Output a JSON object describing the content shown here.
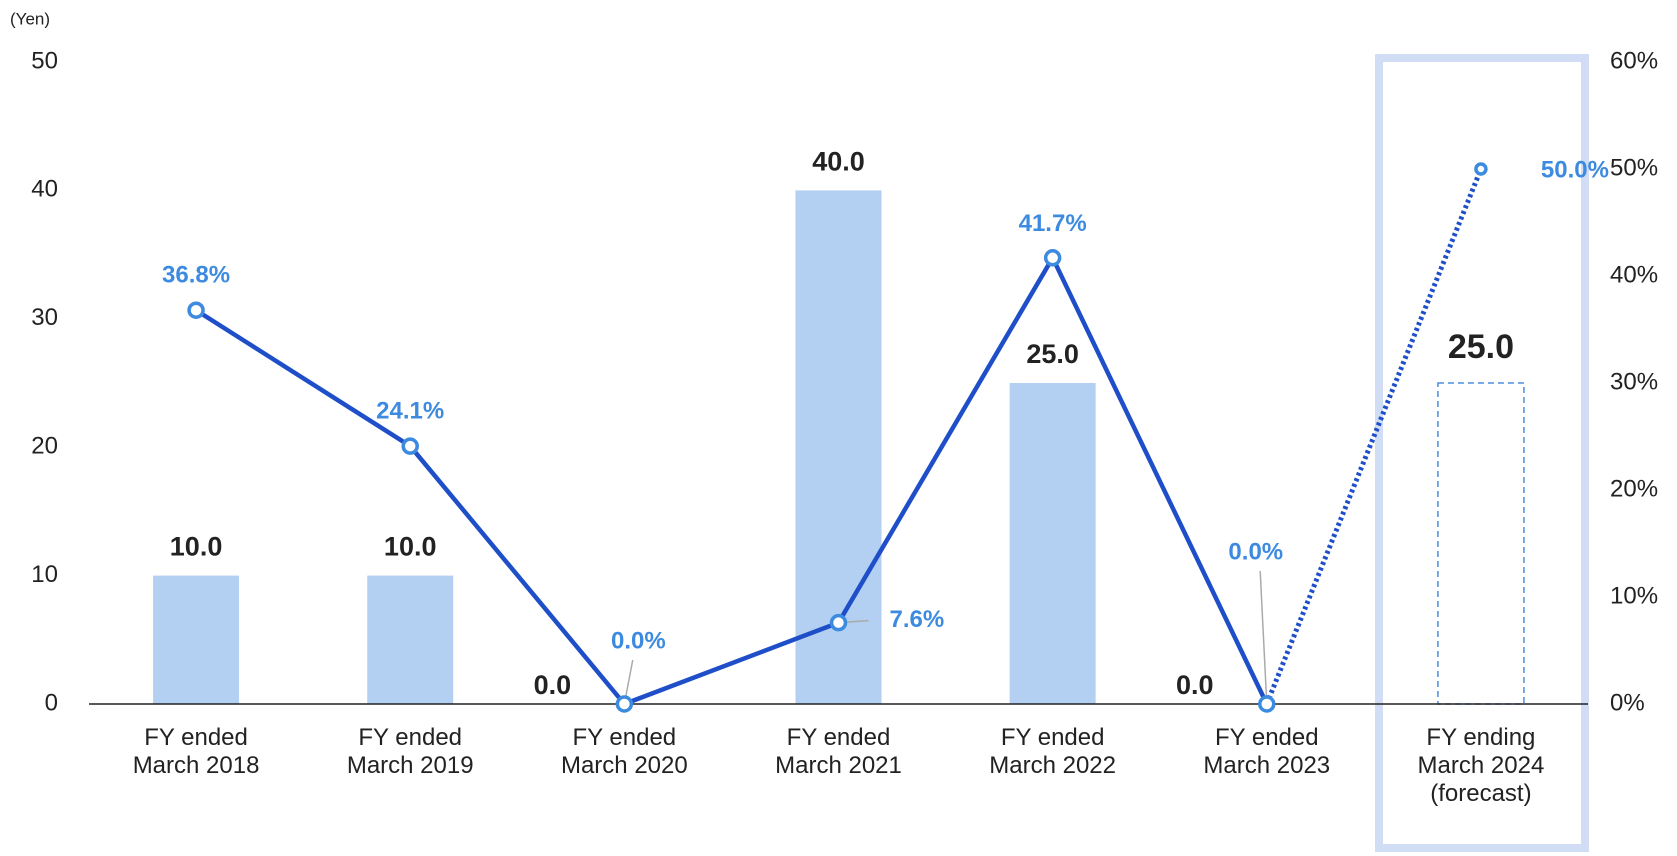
{
  "chart_data": {
    "type": "bar+line",
    "y_axis_label": "(Yen)",
    "categories": [
      "FY ended\nMarch 2018",
      "FY ended\nMarch 2019",
      "FY ended\nMarch 2020",
      "FY ended\nMarch 2021",
      "FY ended\nMarch 2022",
      "FY ended\nMarch 2023",
      "FY ending\nMarch 2024\n(forecast)"
    ],
    "series": [
      {
        "type": "bar",
        "color": "#b3cff2",
        "values": [
          10,
          10,
          0,
          40,
          25,
          0,
          25
        ],
        "value_labels": [
          "10.0",
          "10.0",
          "0.0",
          "40.0",
          "25.0",
          "0.0",
          "25.0"
        ]
      },
      {
        "type": "line",
        "axis": "y2",
        "color": "#1f4fc8",
        "label_color": "#3d8be0",
        "values": [
          36.8,
          24.1,
          0,
          7.6,
          41.7,
          0,
          50
        ],
        "value_labels": [
          "36.8%",
          "24.1%",
          "0.0%",
          "7.6%",
          "41.7%",
          "0.0%",
          "50.0%"
        ]
      }
    ],
    "forecast_index": 6,
    "ylim": [
      0,
      50
    ],
    "yticks": [
      0,
      10,
      20,
      30,
      40,
      50
    ],
    "y2lim": [
      0,
      60
    ],
    "y2ticks": [
      {
        "value": 0,
        "label": "0%"
      },
      {
        "value": 10,
        "label": "10%"
      },
      {
        "value": 20,
        "label": "20%"
      },
      {
        "value": 30,
        "label": "30%"
      },
      {
        "value": 40,
        "label": "40%"
      },
      {
        "value": 50,
        "label": "50%"
      },
      {
        "value": 60,
        "label": "60%"
      }
    ]
  }
}
